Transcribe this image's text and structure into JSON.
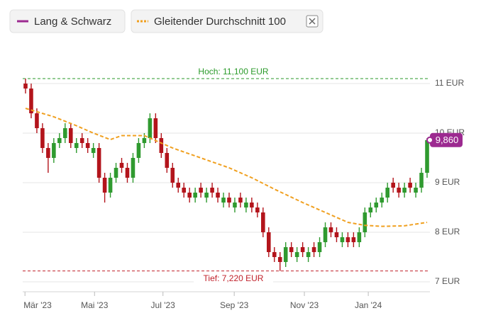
{
  "chart_data": {
    "type": "candlestick",
    "series": [
      {
        "name": "Lang & Schwarz",
        "color": "#9c2a90",
        "up_color": "#2f9a2f",
        "down_color": "#b3141b",
        "open": [
          11.0,
          10.9,
          10.4,
          10.1,
          9.7,
          9.5,
          9.8,
          9.9,
          10.1,
          9.7,
          9.9,
          9.8,
          9.6,
          9.7,
          9.1,
          8.8,
          9.1,
          9.4,
          9.3,
          9.1,
          9.5,
          9.8,
          9.9,
          10.3,
          9.9,
          9.6,
          9.3,
          9.0,
          8.9,
          8.8,
          8.7,
          8.9,
          8.7,
          8.9,
          8.8,
          8.6,
          8.7,
          8.5,
          8.7,
          8.5,
          8.6,
          8.5,
          8.4,
          8.0,
          7.6,
          7.5,
          7.4,
          7.7,
          7.5,
          7.7,
          7.5,
          7.7,
          7.6,
          7.8,
          8.1,
          8.0,
          7.8,
          7.9,
          7.9,
          7.8,
          8.0,
          8.4,
          8.5,
          8.6,
          8.7,
          9.0,
          8.9,
          8.8,
          9.0,
          8.8,
          8.9,
          9.2
        ],
        "high": [
          11.1,
          11.0,
          10.5,
          10.2,
          9.8,
          9.9,
          10.0,
          10.2,
          10.2,
          9.9,
          10.0,
          9.9,
          9.8,
          9.8,
          9.2,
          9.2,
          9.4,
          9.5,
          9.4,
          9.6,
          9.9,
          10.0,
          10.4,
          10.4,
          10.0,
          9.7,
          9.4,
          9.1,
          9.0,
          8.9,
          8.9,
          9.0,
          8.9,
          9.0,
          8.9,
          8.8,
          8.8,
          8.7,
          8.8,
          8.7,
          8.7,
          8.6,
          8.5,
          8.1,
          7.7,
          7.6,
          7.8,
          7.8,
          7.7,
          7.8,
          7.7,
          7.8,
          7.9,
          8.2,
          8.2,
          8.1,
          8.0,
          8.0,
          8.0,
          8.1,
          8.5,
          8.6,
          8.7,
          8.8,
          9.0,
          9.1,
          9.0,
          9.0,
          9.1,
          9.0,
          9.3,
          9.9
        ],
        "low": [
          10.8,
          10.3,
          10.0,
          9.6,
          9.2,
          9.4,
          9.7,
          9.8,
          9.7,
          9.6,
          9.7,
          9.6,
          9.5,
          9.0,
          8.6,
          8.7,
          9.0,
          9.2,
          9.0,
          9.0,
          9.4,
          9.7,
          9.8,
          9.8,
          9.5,
          9.2,
          8.9,
          8.8,
          8.7,
          8.6,
          8.6,
          8.7,
          8.6,
          8.7,
          8.6,
          8.5,
          8.5,
          8.4,
          8.5,
          8.4,
          8.4,
          8.3,
          7.9,
          7.5,
          7.4,
          7.22,
          7.3,
          7.5,
          7.4,
          7.5,
          7.4,
          7.5,
          7.5,
          7.7,
          7.9,
          7.8,
          7.7,
          7.7,
          7.7,
          7.7,
          7.9,
          8.3,
          8.4,
          8.5,
          8.6,
          8.8,
          8.7,
          8.7,
          8.8,
          8.7,
          8.8,
          9.1
        ],
        "close": [
          10.9,
          10.4,
          10.1,
          9.7,
          9.5,
          9.8,
          9.9,
          10.1,
          9.8,
          9.8,
          9.8,
          9.7,
          9.7,
          9.1,
          8.8,
          9.1,
          9.3,
          9.3,
          9.1,
          9.5,
          9.8,
          9.9,
          10.3,
          9.9,
          9.6,
          9.3,
          9.0,
          8.9,
          8.8,
          8.7,
          8.8,
          8.8,
          8.8,
          8.8,
          8.7,
          8.7,
          8.6,
          8.6,
          8.6,
          8.6,
          8.5,
          8.4,
          8.0,
          7.6,
          7.5,
          7.4,
          7.7,
          7.6,
          7.6,
          7.6,
          7.6,
          7.6,
          7.8,
          8.1,
          8.0,
          7.9,
          7.9,
          7.8,
          7.8,
          8.0,
          8.4,
          8.5,
          8.6,
          8.7,
          8.9,
          8.9,
          8.8,
          8.9,
          8.9,
          8.9,
          9.2,
          9.86
        ]
      },
      {
        "name": "Gleitender Durchschnitt 100",
        "color": "#f0a020",
        "x": [
          0,
          5,
          9,
          12,
          15,
          17,
          21,
          23,
          26,
          31,
          36,
          40,
          44,
          49,
          54,
          57,
          60,
          63,
          67,
          71
        ],
        "values": [
          10.5,
          10.33,
          10.15,
          10.0,
          9.87,
          9.95,
          9.95,
          9.85,
          9.7,
          9.5,
          9.3,
          9.1,
          8.87,
          8.6,
          8.35,
          8.2,
          8.14,
          8.12,
          8.13,
          8.2
        ]
      }
    ],
    "high_line": {
      "value": 11.1,
      "label": "Hoch: 11,100 EUR",
      "color": "#2a9a2a"
    },
    "low_line": {
      "value": 7.22,
      "label": "Tief: 7,220 EUR",
      "color": "#c0202a"
    },
    "current": {
      "value": 9.86,
      "label": "9,860"
    },
    "xlim": [
      -0.5,
      71.5
    ],
    "xticks": [
      {
        "value": -0.1,
        "label": "Mär '23"
      },
      {
        "value": 12.2,
        "label": "Mai '23"
      },
      {
        "value": 24.3,
        "label": "Jul '23"
      },
      {
        "value": 36.9,
        "label": "Sep '23"
      },
      {
        "value": 49.3,
        "label": "Nov '23"
      },
      {
        "value": 60.6,
        "label": "Jan '24"
      }
    ],
    "ylim": [
      6.8,
      12
    ],
    "yticks": [
      {
        "value": 7,
        "label": "7 EUR"
      },
      {
        "value": 8,
        "label": "8 EUR"
      },
      {
        "value": 9,
        "label": "9 EUR"
      },
      {
        "value": 10,
        "label": "10 EUR"
      },
      {
        "value": 11,
        "label": "11 EUR"
      }
    ],
    "grid": true
  }
}
